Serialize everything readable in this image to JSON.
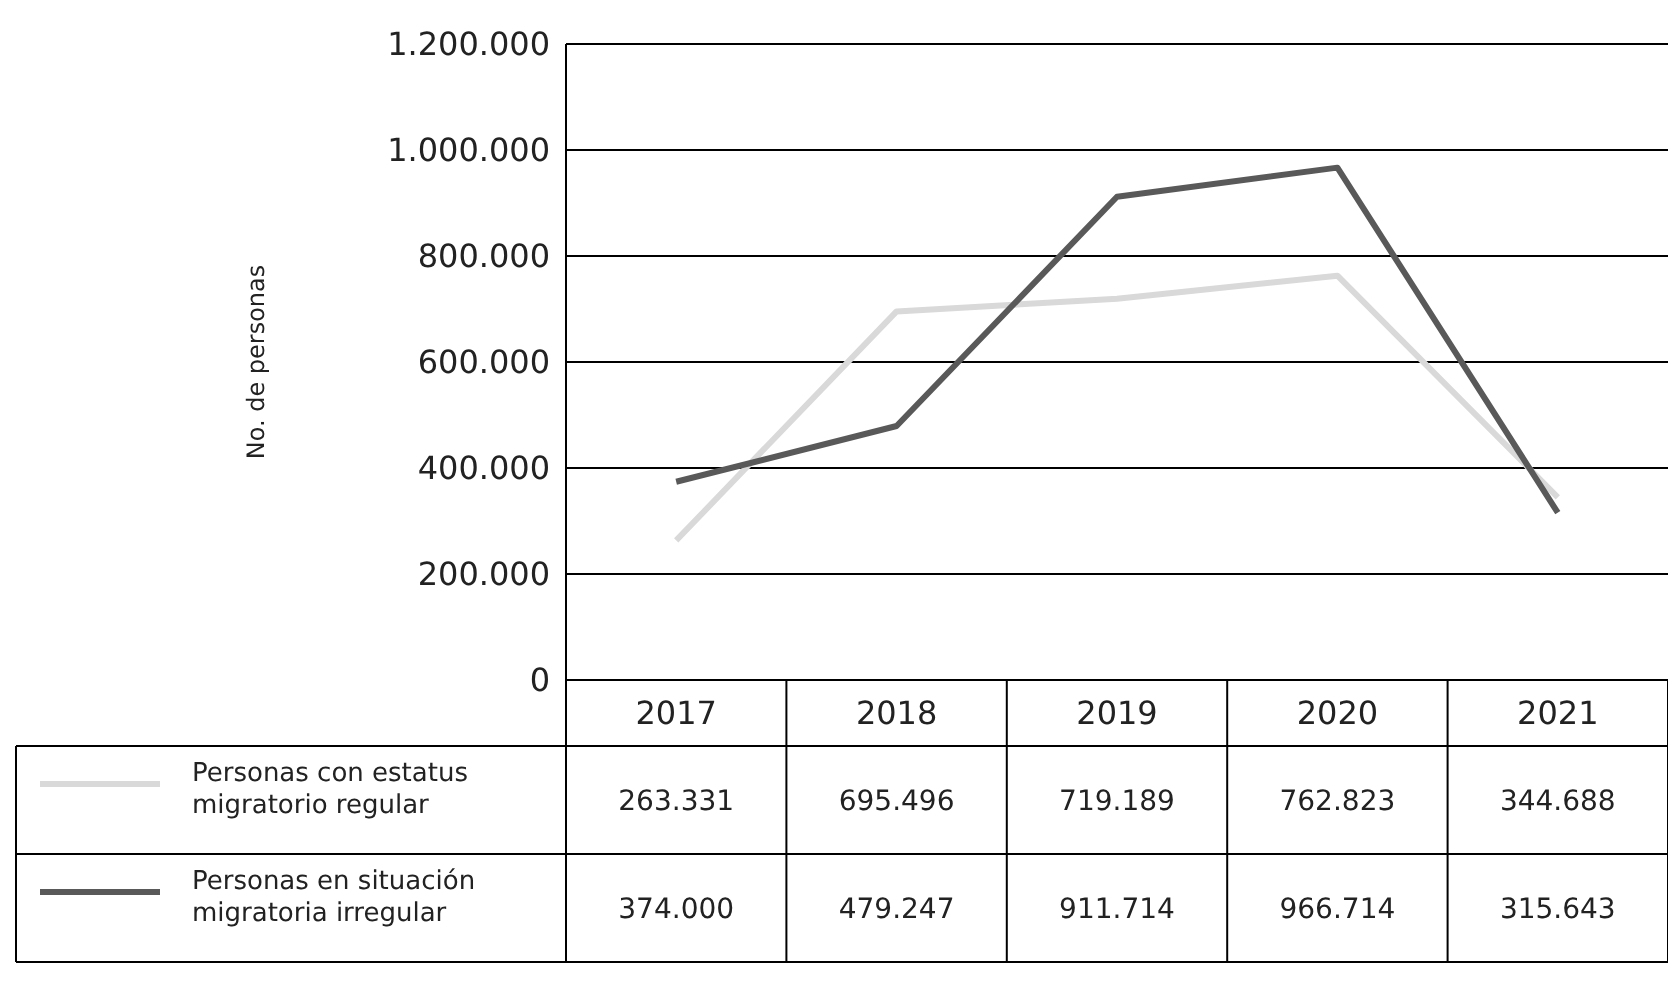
{
  "chart_data": {
    "type": "line",
    "ylabel": "No. de personas",
    "categories": [
      "2017",
      "2018",
      "2019",
      "2020",
      "2021"
    ],
    "ylim": [
      0,
      1200000
    ],
    "yticks": [
      {
        "value": 0,
        "label": "0"
      },
      {
        "value": 200000,
        "label": "200.000"
      },
      {
        "value": 400000,
        "label": "400.000"
      },
      {
        "value": 600000,
        "label": "600.000"
      },
      {
        "value": 800000,
        "label": "800.000"
      },
      {
        "value": 1000000,
        "label": "1.000.000"
      },
      {
        "value": 1200000,
        "label": "1.200.000"
      }
    ],
    "grid": "y",
    "legend": "bottom left",
    "marker": "none",
    "line_style": "solid",
    "series": [
      {
        "name": "Personas con estatus migratorio regular",
        "color": "#d9d9d9",
        "values": [
          263331,
          695496,
          719189,
          762823,
          344688
        ],
        "value_labels": [
          "263.331",
          "695.496",
          "719.189",
          "762.823",
          "344.688"
        ]
      },
      {
        "name": "Personas en situación migratoria irregular",
        "color": "#595959",
        "values": [
          374000,
          479247,
          911714,
          966714,
          315643
        ],
        "value_labels": [
          "374.000",
          "479.247",
          "911.714",
          "966.714",
          "315.643"
        ]
      }
    ]
  }
}
